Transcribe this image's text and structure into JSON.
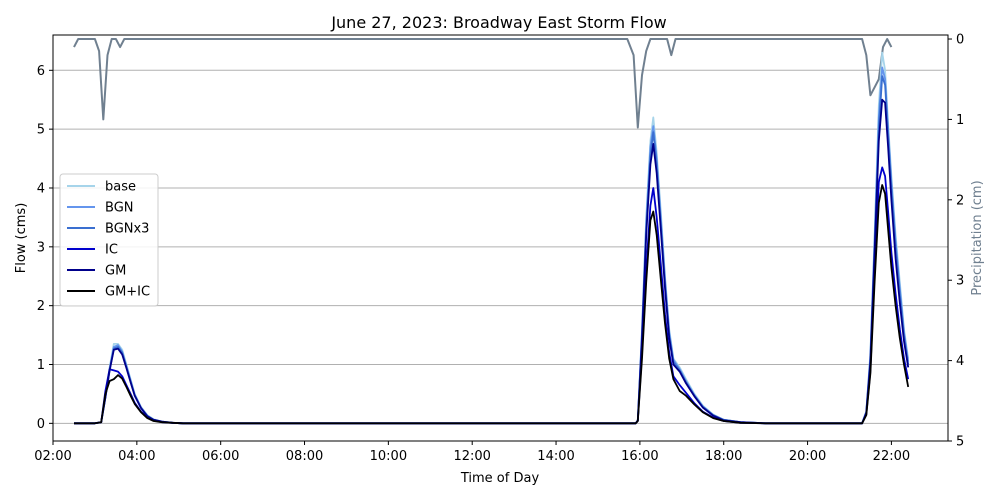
{
  "chart_data": {
    "type": "line",
    "title": "June 27, 2023: Broadway East Storm Flow",
    "xlabel": "Time of Day",
    "ylabel": "Flow (cms)",
    "y2label": "Precipitation (cm)",
    "xlim": [
      2.0,
      23.35
    ],
    "ylim": [
      -0.3,
      6.6
    ],
    "y2lim": [
      5,
      -0.05
    ],
    "y2_inverted": true,
    "xticks": [
      "02:00",
      "04:00",
      "06:00",
      "08:00",
      "10:00",
      "12:00",
      "14:00",
      "16:00",
      "18:00",
      "20:00",
      "22:00"
    ],
    "xtick_values": [
      2,
      4,
      6,
      8,
      10,
      12,
      14,
      16,
      18,
      20,
      22
    ],
    "yticks": [
      0,
      1,
      2,
      3,
      4,
      5,
      6
    ],
    "y2ticks": [
      0,
      1,
      2,
      3,
      4,
      5
    ],
    "grid": "horizontal",
    "legend_position": "center-left",
    "colors": {
      "precip": "#708090",
      "y2label": "#708090"
    },
    "series": [
      {
        "name": "base",
        "color": "#a6d4ea",
        "x": [
          2.5,
          3.0,
          3.15,
          3.25,
          3.35,
          3.45,
          3.55,
          3.65,
          3.75,
          3.85,
          3.95,
          4.1,
          4.25,
          4.4,
          4.6,
          4.85,
          5.1,
          6.0,
          15.9,
          15.95,
          16.05,
          16.15,
          16.25,
          16.32,
          16.4,
          16.5,
          16.6,
          16.7,
          16.8,
          16.95,
          17.1,
          17.3,
          17.5,
          17.75,
          18.0,
          18.4,
          19.0,
          21.3,
          21.4,
          21.5,
          21.6,
          21.7,
          21.78,
          21.85,
          21.92,
          22.0,
          22.1,
          22.2,
          22.3,
          22.4
        ],
        "values": [
          0,
          0,
          0.02,
          0.45,
          0.95,
          1.35,
          1.35,
          1.25,
          1.0,
          0.75,
          0.5,
          0.28,
          0.14,
          0.07,
          0.03,
          0.01,
          0,
          0,
          0,
          0.05,
          1.6,
          3.5,
          4.8,
          5.2,
          4.6,
          3.6,
          2.5,
          1.6,
          1.1,
          0.95,
          0.75,
          0.5,
          0.3,
          0.15,
          0.06,
          0.02,
          0,
          0,
          0.2,
          1.2,
          3.2,
          5.4,
          6.3,
          6.0,
          5.1,
          4.2,
          3.2,
          2.4,
          1.6,
          1.1
        ]
      },
      {
        "name": "BGN",
        "color": "#6495ed",
        "x": [
          2.5,
          3.0,
          3.15,
          3.25,
          3.35,
          3.45,
          3.55,
          3.65,
          3.75,
          3.85,
          3.95,
          4.1,
          4.25,
          4.4,
          4.6,
          4.85,
          5.1,
          6.0,
          15.9,
          15.95,
          16.05,
          16.15,
          16.25,
          16.32,
          16.4,
          16.5,
          16.6,
          16.7,
          16.8,
          16.95,
          17.1,
          17.3,
          17.5,
          17.75,
          18.0,
          18.4,
          19.0,
          21.3,
          21.4,
          21.5,
          21.6,
          21.7,
          21.78,
          21.85,
          21.92,
          22.0,
          22.1,
          22.2,
          22.3,
          22.4
        ],
        "values": [
          0,
          0,
          0.02,
          0.45,
          0.92,
          1.3,
          1.33,
          1.22,
          0.98,
          0.73,
          0.49,
          0.27,
          0.13,
          0.06,
          0.03,
          0.01,
          0,
          0,
          0,
          0.05,
          1.55,
          3.4,
          4.7,
          5.05,
          4.5,
          3.5,
          2.45,
          1.55,
          1.08,
          0.92,
          0.72,
          0.48,
          0.29,
          0.14,
          0.06,
          0.02,
          0,
          0,
          0.2,
          1.15,
          3.1,
          5.2,
          6.05,
          5.85,
          5.0,
          4.1,
          3.1,
          2.3,
          1.55,
          1.05
        ]
      },
      {
        "name": "BGNx3",
        "color": "#3a6fd0",
        "x": [
          2.5,
          3.0,
          3.15,
          3.25,
          3.35,
          3.45,
          3.55,
          3.65,
          3.75,
          3.85,
          3.95,
          4.1,
          4.25,
          4.4,
          4.6,
          4.85,
          5.1,
          6.0,
          15.9,
          15.95,
          16.05,
          16.15,
          16.25,
          16.32,
          16.4,
          16.5,
          16.6,
          16.7,
          16.8,
          16.95,
          17.1,
          17.3,
          17.5,
          17.75,
          18.0,
          18.4,
          19.0,
          21.3,
          21.4,
          21.5,
          21.6,
          21.7,
          21.78,
          21.85,
          21.92,
          22.0,
          22.1,
          22.2,
          22.3,
          22.4
        ],
        "values": [
          0,
          0,
          0.02,
          0.44,
          0.9,
          1.27,
          1.3,
          1.2,
          0.96,
          0.71,
          0.48,
          0.26,
          0.13,
          0.06,
          0.03,
          0.01,
          0,
          0,
          0,
          0.05,
          1.5,
          3.3,
          4.55,
          4.95,
          4.4,
          3.4,
          2.4,
          1.5,
          1.05,
          0.9,
          0.7,
          0.47,
          0.28,
          0.14,
          0.06,
          0.02,
          0,
          0,
          0.19,
          1.1,
          3.0,
          5.0,
          5.9,
          5.75,
          4.9,
          4.0,
          3.0,
          2.2,
          1.5,
          1.0
        ]
      },
      {
        "name": "IC",
        "color": "#0000cd",
        "x": [
          2.5,
          3.0,
          3.15,
          3.25,
          3.35,
          3.45,
          3.55,
          3.65,
          3.75,
          3.85,
          3.95,
          4.1,
          4.25,
          4.4,
          4.6,
          4.85,
          5.1,
          6.0,
          15.9,
          15.95,
          16.05,
          16.15,
          16.25,
          16.32,
          16.4,
          16.5,
          16.6,
          16.7,
          16.8,
          16.95,
          17.1,
          17.3,
          17.5,
          17.75,
          18.0,
          18.4,
          19.0,
          21.3,
          21.4,
          21.5,
          21.6,
          21.7,
          21.78,
          21.85,
          21.92,
          22.0,
          22.1,
          22.2,
          22.3,
          22.4
        ],
        "values": [
          0,
          0,
          0.02,
          0.55,
          0.92,
          0.9,
          0.88,
          0.8,
          0.65,
          0.5,
          0.35,
          0.2,
          0.1,
          0.05,
          0.02,
          0.01,
          0,
          0,
          0,
          0.04,
          1.2,
          2.6,
          3.7,
          4.0,
          3.5,
          2.7,
          1.85,
          1.2,
          0.8,
          0.65,
          0.52,
          0.34,
          0.2,
          0.1,
          0.04,
          0.01,
          0,
          0,
          0.15,
          0.9,
          2.6,
          4.1,
          4.35,
          4.2,
          3.6,
          2.9,
          2.2,
          1.6,
          1.1,
          0.75
        ]
      },
      {
        "name": "GM",
        "color": "#00008b",
        "x": [
          2.5,
          3.0,
          3.15,
          3.25,
          3.35,
          3.45,
          3.55,
          3.65,
          3.75,
          3.85,
          3.95,
          4.1,
          4.25,
          4.4,
          4.6,
          4.85,
          5.1,
          6.0,
          15.9,
          15.95,
          16.05,
          16.15,
          16.25,
          16.32,
          16.4,
          16.5,
          16.6,
          16.7,
          16.8,
          16.95,
          17.1,
          17.3,
          17.5,
          17.75,
          18.0,
          18.4,
          19.0,
          21.3,
          21.4,
          21.5,
          21.6,
          21.7,
          21.78,
          21.85,
          21.92,
          22.0,
          22.1,
          22.2,
          22.3,
          22.4
        ],
        "values": [
          0,
          0,
          0.02,
          0.44,
          0.9,
          1.25,
          1.27,
          1.17,
          0.94,
          0.7,
          0.47,
          0.26,
          0.12,
          0.06,
          0.03,
          0.01,
          0,
          0,
          0,
          0.05,
          1.45,
          3.2,
          4.4,
          4.75,
          4.25,
          3.3,
          2.3,
          1.45,
          1.0,
          0.88,
          0.68,
          0.46,
          0.27,
          0.13,
          0.05,
          0.02,
          0,
          0,
          0.18,
          1.05,
          2.9,
          4.8,
          5.5,
          5.45,
          4.7,
          3.8,
          2.8,
          2.05,
          1.4,
          0.95
        ]
      },
      {
        "name": "GM+IC",
        "color": "#000000",
        "x": [
          2.5,
          3.0,
          3.15,
          3.25,
          3.35,
          3.45,
          3.55,
          3.65,
          3.75,
          3.85,
          3.95,
          4.1,
          4.25,
          4.4,
          4.6,
          4.85,
          5.1,
          6.0,
          15.9,
          15.95,
          16.05,
          16.15,
          16.25,
          16.32,
          16.4,
          16.5,
          16.6,
          16.7,
          16.8,
          16.95,
          17.1,
          17.3,
          17.5,
          17.75,
          18.0,
          18.4,
          19.0,
          21.3,
          21.4,
          21.5,
          21.6,
          21.7,
          21.78,
          21.85,
          21.92,
          22.0,
          22.1,
          22.2,
          22.3,
          22.4
        ],
        "values": [
          0,
          0,
          0.02,
          0.5,
          0.72,
          0.75,
          0.82,
          0.76,
          0.62,
          0.47,
          0.33,
          0.19,
          0.09,
          0.04,
          0.02,
          0.01,
          0,
          0,
          0,
          0.04,
          1.1,
          2.4,
          3.45,
          3.6,
          3.2,
          2.45,
          1.7,
          1.1,
          0.75,
          0.55,
          0.47,
          0.32,
          0.19,
          0.09,
          0.04,
          0.01,
          0,
          0,
          0.14,
          0.85,
          2.4,
          3.75,
          4.05,
          3.9,
          3.3,
          2.65,
          2.0,
          1.45,
          1.0,
          0.62
        ]
      }
    ],
    "precipitation": {
      "name": "Precipitation",
      "x": [
        2.5,
        2.6,
        3.0,
        3.1,
        3.2,
        3.3,
        3.4,
        3.5,
        3.6,
        3.7,
        4.0,
        6.0,
        10.0,
        14.0,
        15.7,
        15.85,
        15.95,
        16.05,
        16.15,
        16.25,
        16.4,
        16.55,
        16.65,
        16.75,
        16.85,
        17.0,
        20.0,
        21.2,
        21.3,
        21.4,
        21.5,
        21.6,
        21.7,
        21.8,
        21.9,
        22.0
      ],
      "values": [
        0.1,
        0.0,
        0.0,
        0.15,
        1.0,
        0.2,
        0.0,
        0.0,
        0.1,
        0.0,
        0.0,
        0.0,
        0.0,
        0.0,
        0.0,
        0.2,
        1.1,
        0.45,
        0.15,
        0.0,
        0.0,
        0.0,
        0.0,
        0.2,
        0.0,
        0.0,
        0.0,
        0.0,
        0.0,
        0.2,
        0.7,
        0.6,
        0.5,
        0.1,
        0.0,
        0.1
      ]
    }
  }
}
